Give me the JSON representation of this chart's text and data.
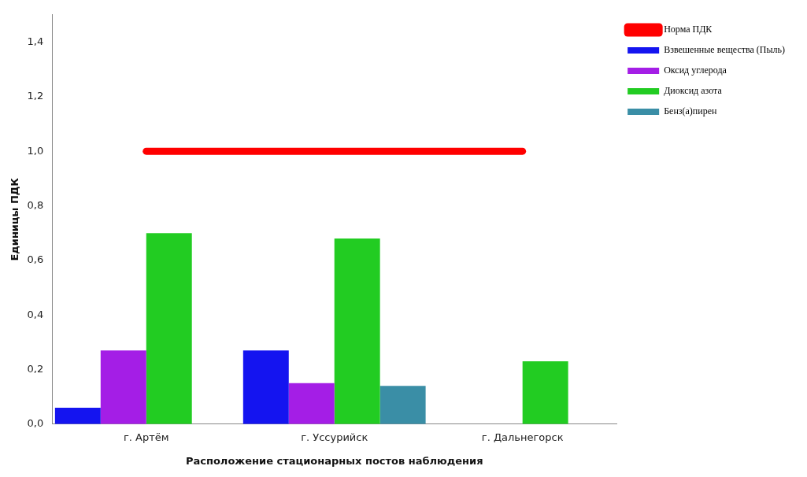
{
  "chart_data": {
    "type": "bar",
    "xlabel": "Расположение стационарных постов наблюдения",
    "ylabel": "Единицы ПДК",
    "categories": [
      "г. Артём",
      "г. Уссурийск",
      "г. Дальнегорск"
    ],
    "series": [
      {
        "name": "Взвешенные вещества (Пыль)",
        "color": "#1414f0",
        "values": [
          0.06,
          0.27,
          null
        ]
      },
      {
        "name": "Оксид углерода",
        "color": "#a41ee6",
        "values": [
          0.27,
          0.15,
          null
        ]
      },
      {
        "name": "Диоксид азота",
        "color": "#22cc22",
        "values": [
          0.7,
          0.68,
          0.23
        ]
      },
      {
        "name": "Бенз(а)пирен",
        "color": "#3a8ea6",
        "values": [
          null,
          0.14,
          null
        ]
      },
      {
        "name": "Норма ПДК",
        "color": "#ff0000",
        "type": "line",
        "values": [
          1,
          1,
          1
        ]
      }
    ],
    "ylim": [
      0,
      1.5
    ],
    "yticks": [
      {
        "value": 0,
        "label": "0,0"
      },
      {
        "value": 0.2,
        "label": "0,2"
      },
      {
        "value": 0.4,
        "label": "0,4"
      },
      {
        "value": 0.6,
        "label": "0,6"
      },
      {
        "value": 0.8,
        "label": "0,8"
      },
      {
        "value": 1,
        "label": "1,0"
      },
      {
        "value": 1.2,
        "label": "1,2"
      },
      {
        "value": 1.4,
        "label": "1,4"
      }
    ],
    "grid": false,
    "legend": "top right"
  }
}
